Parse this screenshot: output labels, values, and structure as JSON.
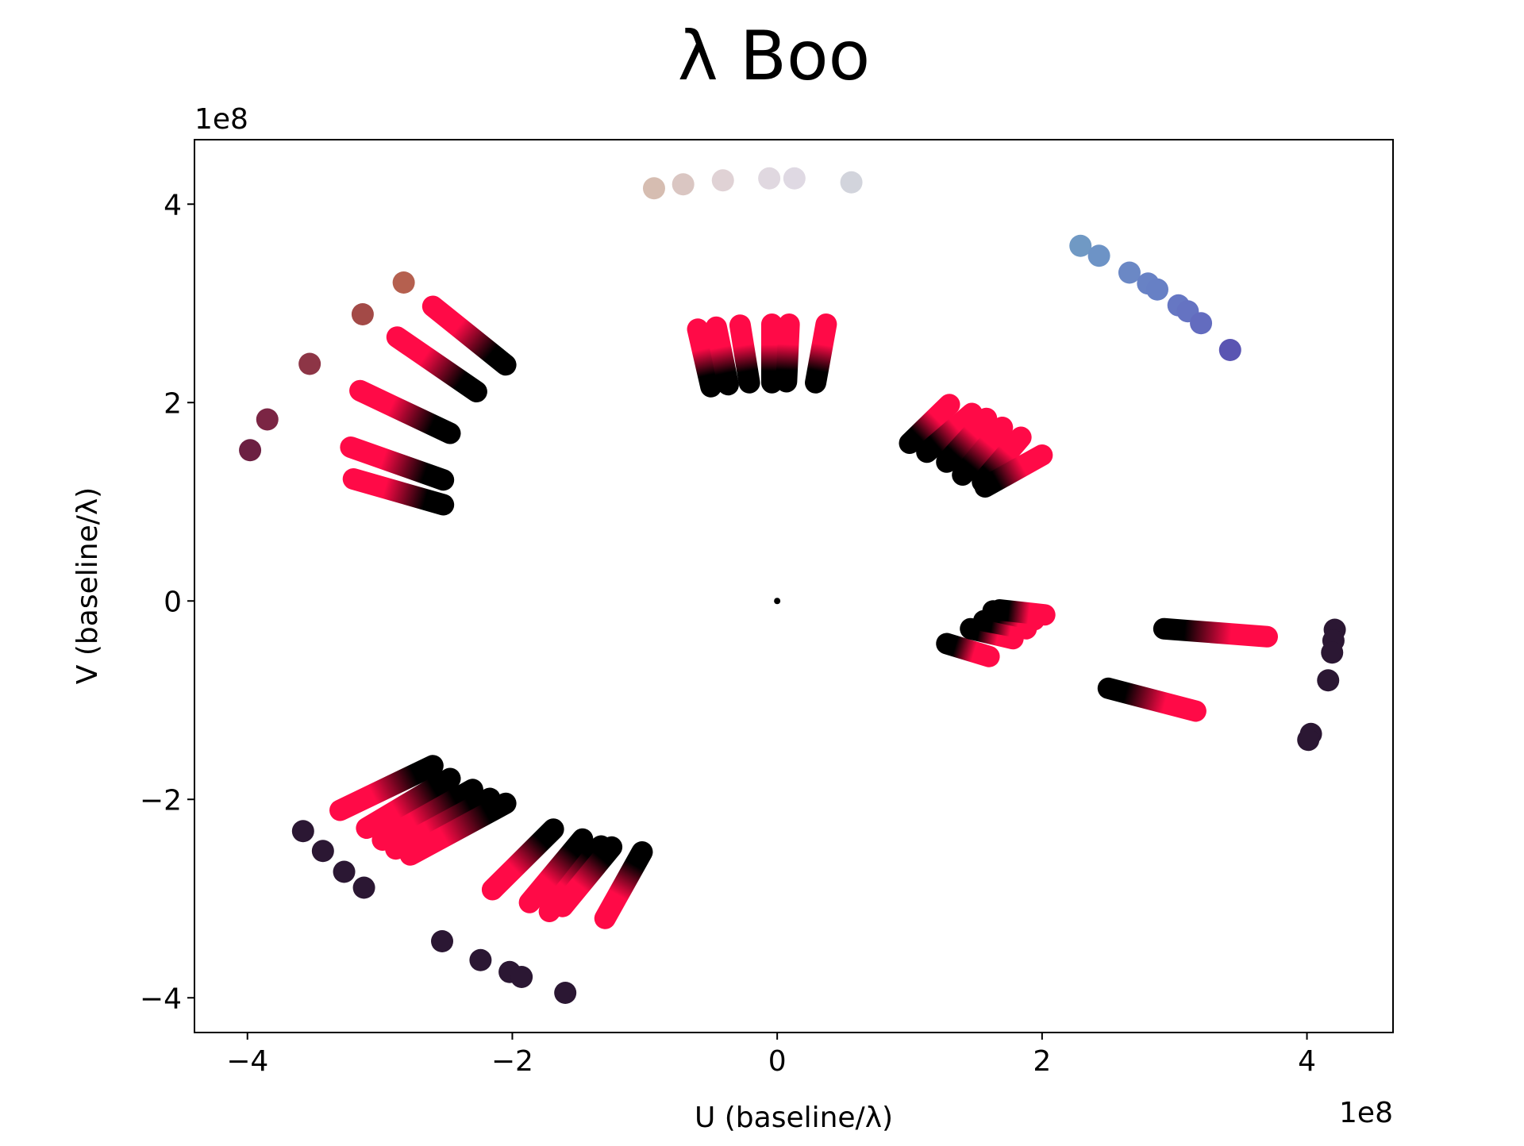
{
  "chart_data": {
    "type": "scatter",
    "title": "λ Boo",
    "xlabel": "U (baseline/λ)",
    "ylabel": "V (baseline/λ)",
    "x_offset_text": "1e8",
    "y_offset_text": "1e8",
    "xlim": [
      -4.4,
      4.65
    ],
    "ylim": [
      -4.35,
      4.65
    ],
    "xticks": [
      -4,
      -2,
      0,
      2,
      4
    ],
    "yticks": [
      -4,
      -2,
      0,
      2,
      4
    ],
    "xtick_labels": [
      "−4",
      "−2",
      "0",
      "2",
      "4"
    ],
    "ytick_labels": [
      "−4",
      "−2",
      "0",
      "2",
      "4"
    ],
    "axis_scale_factor": 100000000,
    "grid": false,
    "legend": "none",
    "gradient_colors": {
      "start": "#ff0a47",
      "end": "#000000"
    },
    "center_point": {
      "u": 0,
      "v": 0,
      "color": "#000000"
    },
    "gradient_tracks": [
      {
        "u0": -3.22,
        "v0": 1.55,
        "u1": -2.52,
        "v1": 1.22
      },
      {
        "u0": -3.2,
        "v0": 1.23,
        "u1": -2.52,
        "v1": 0.97
      },
      {
        "u0": -3.15,
        "v0": 2.12,
        "u1": -2.47,
        "v1": 1.69
      },
      {
        "u0": -2.87,
        "v0": 2.66,
        "u1": -2.27,
        "v1": 2.11
      },
      {
        "u0": -2.6,
        "v0": 2.97,
        "u1": -2.05,
        "v1": 2.38
      },
      {
        "u0": -0.6,
        "v0": 2.74,
        "u1": -0.5,
        "v1": 2.16
      },
      {
        "u0": -0.46,
        "v0": 2.76,
        "u1": -0.37,
        "v1": 2.18
      },
      {
        "u0": -0.28,
        "v0": 2.78,
        "u1": -0.21,
        "v1": 2.2
      },
      {
        "u0": -0.04,
        "v0": 2.79,
        "u1": -0.04,
        "v1": 2.2
      },
      {
        "u0": 0.09,
        "v0": 2.79,
        "u1": 0.07,
        "v1": 2.21
      },
      {
        "u0": 0.37,
        "v0": 2.79,
        "u1": 0.29,
        "v1": 2.2
      },
      {
        "u0": 1.3,
        "v0": 1.98,
        "u1": 1.0,
        "v1": 1.59
      },
      {
        "u0": 1.47,
        "v0": 1.89,
        "u1": 1.13,
        "v1": 1.5
      },
      {
        "u0": 1.58,
        "v0": 1.84,
        "u1": 1.28,
        "v1": 1.4
      },
      {
        "u0": 1.7,
        "v0": 1.75,
        "u1": 1.4,
        "v1": 1.27
      },
      {
        "u0": 1.84,
        "v0": 1.65,
        "u1": 1.55,
        "v1": 1.2
      },
      {
        "u0": 2.0,
        "v0": 1.47,
        "u1": 1.57,
        "v1": 1.15
      },
      {
        "u0": 1.6,
        "v0": -0.56,
        "u1": 1.28,
        "v1": -0.43
      },
      {
        "u0": 1.78,
        "v0": -0.38,
        "u1": 1.46,
        "v1": -0.28
      },
      {
        "u0": 1.88,
        "v0": -0.28,
        "u1": 1.56,
        "v1": -0.2
      },
      {
        "u0": 1.94,
        "v0": -0.19,
        "u1": 1.63,
        "v1": -0.1
      },
      {
        "u0": 2.02,
        "v0": -0.14,
        "u1": 1.68,
        "v1": -0.09
      },
      {
        "u0": 3.7,
        "v0": -0.36,
        "u1": 2.92,
        "v1": -0.28
      },
      {
        "u0": 3.16,
        "v0": -1.11,
        "u1": 2.5,
        "v1": -0.88
      },
      {
        "u0": -3.3,
        "v0": -2.11,
        "u1": -2.6,
        "v1": -1.66
      },
      {
        "u0": -3.1,
        "v0": -2.29,
        "u1": -2.47,
        "v1": -1.79
      },
      {
        "u0": -2.98,
        "v0": -2.41,
        "u1": -2.3,
        "v1": -1.9
      },
      {
        "u0": -2.88,
        "v0": -2.5,
        "u1": -2.17,
        "v1": -1.99
      },
      {
        "u0": -2.77,
        "v0": -2.56,
        "u1": -2.05,
        "v1": -2.04
      },
      {
        "u0": -2.15,
        "v0": -2.91,
        "u1": -1.69,
        "v1": -2.3
      },
      {
        "u0": -1.87,
        "v0": -3.04,
        "u1": -1.47,
        "v1": -2.4
      },
      {
        "u0": -1.72,
        "v0": -3.13,
        "u1": -1.33,
        "v1": -2.47
      },
      {
        "u0": -1.62,
        "v0": -3.08,
        "u1": -1.25,
        "v1": -2.48
      },
      {
        "u0": -1.3,
        "v0": -3.2,
        "u1": -1.02,
        "v1": -2.53
      }
    ],
    "single_points": [
      {
        "u": -0.93,
        "v": 4.16,
        "color": "#d6bdb1"
      },
      {
        "u": -0.71,
        "v": 4.2,
        "color": "#dac6c2"
      },
      {
        "u": -0.41,
        "v": 4.24,
        "color": "#e0d2d5"
      },
      {
        "u": -0.06,
        "v": 4.26,
        "color": "#e0d8e0"
      },
      {
        "u": 0.13,
        "v": 4.26,
        "color": "#dfd9e3"
      },
      {
        "u": 0.56,
        "v": 4.22,
        "color": "#d2d4dc"
      },
      {
        "u": 2.29,
        "v": 3.58,
        "color": "#7099c4"
      },
      {
        "u": 2.43,
        "v": 3.48,
        "color": "#6d93c6"
      },
      {
        "u": 2.66,
        "v": 3.31,
        "color": "#6b88c5"
      },
      {
        "u": 2.8,
        "v": 3.2,
        "color": "#6882c5"
      },
      {
        "u": 2.87,
        "v": 3.14,
        "color": "#6780c5"
      },
      {
        "u": 3.03,
        "v": 2.98,
        "color": "#6677c3"
      },
      {
        "u": 3.1,
        "v": 2.92,
        "color": "#6573c2"
      },
      {
        "u": 3.2,
        "v": 2.8,
        "color": "#636cbf"
      },
      {
        "u": 3.42,
        "v": 2.53,
        "color": "#5a55b2"
      },
      {
        "u": -2.82,
        "v": 3.21,
        "color": "#b5604f"
      },
      {
        "u": -3.13,
        "v": 2.89,
        "color": "#a34a47"
      },
      {
        "u": -3.53,
        "v": 2.39,
        "color": "#8d3546"
      },
      {
        "u": -3.85,
        "v": 1.83,
        "color": "#7b2544"
      },
      {
        "u": -3.98,
        "v": 1.52,
        "color": "#6c2042"
      },
      {
        "u": 4.21,
        "v": -0.29,
        "color": "#2b1733"
      },
      {
        "u": 4.2,
        "v": -0.4,
        "color": "#2b1733"
      },
      {
        "u": 4.19,
        "v": -0.52,
        "color": "#2b1733"
      },
      {
        "u": 4.16,
        "v": -0.8,
        "color": "#2b1733"
      },
      {
        "u": 4.03,
        "v": -1.34,
        "color": "#2b1733"
      },
      {
        "u": 4.01,
        "v": -1.4,
        "color": "#2b1733"
      },
      {
        "u": -3.58,
        "v": -2.32,
        "color": "#2b1733"
      },
      {
        "u": -3.43,
        "v": -2.52,
        "color": "#2b1733"
      },
      {
        "u": -3.27,
        "v": -2.73,
        "color": "#2b1733"
      },
      {
        "u": -3.12,
        "v": -2.89,
        "color": "#2b1733"
      },
      {
        "u": -2.53,
        "v": -3.43,
        "color": "#2b1733"
      },
      {
        "u": -2.24,
        "v": -3.62,
        "color": "#2b1733"
      },
      {
        "u": -2.02,
        "v": -3.74,
        "color": "#2b1733"
      },
      {
        "u": -1.93,
        "v": -3.79,
        "color": "#2b1733"
      },
      {
        "u": -1.6,
        "v": -3.95,
        "color": "#2b1733"
      }
    ]
  }
}
